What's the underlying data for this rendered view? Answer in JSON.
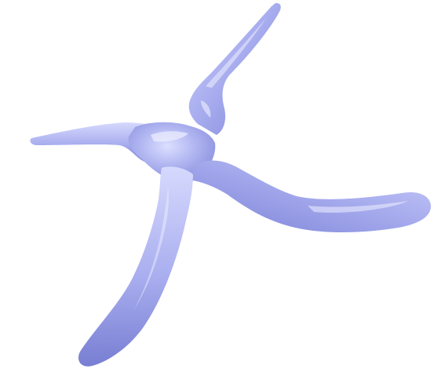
{
  "scene": {
    "background_color": "#ffffff",
    "object_color": "#a9aeee",
    "highlight_color": "#e6e8ff",
    "shadow_color": "#6a70c8",
    "object_icon": "pliers-shaped-3d-mesh",
    "arm_count": 4
  }
}
